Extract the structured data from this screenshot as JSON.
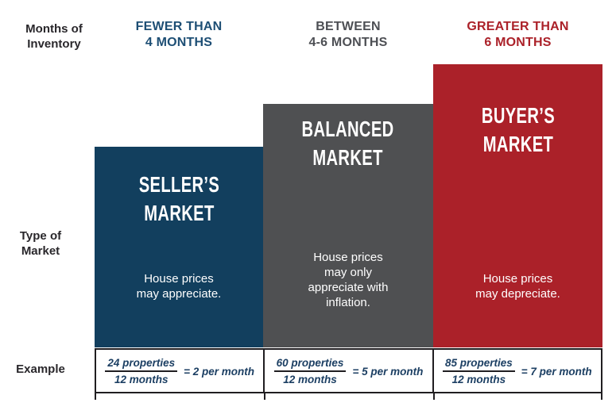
{
  "palette": {
    "seller_navy": "#123f5e",
    "balanced_gray": "#4f5052",
    "buyer_red": "#ab2129",
    "header_navy_text": "#1d4e74",
    "header_gray_text": "#4d4f54",
    "header_red_text": "#ab2129",
    "row_label_text": "#29272b",
    "example_text_navy": "#1c3f63",
    "border_dark": "#201e21",
    "bar_text_white": "#ffffff",
    "background": "#ffffff"
  },
  "row_labels": {
    "inventory": "Months of\nInventory",
    "type": "Type of\nMarket",
    "example": "Example"
  },
  "columns": [
    {
      "id": "seller",
      "header": "FEWER THAN\n4 MONTHS",
      "title": "SELLER’S\nMARKET",
      "body": "House prices\nmay appreciate.",
      "example": {
        "numerator": "24 properties",
        "denominator": "12 months",
        "result": "= 2 per month"
      }
    },
    {
      "id": "balanced",
      "header": "BETWEEN\n4-6 MONTHS",
      "title": "BALANCED\nMARKET",
      "body": "House prices\nmay only\nappreciate with\ninflation.",
      "example": {
        "numerator": "60 properties",
        "denominator": "12 months",
        "result": "= 5 per month"
      }
    },
    {
      "id": "buyer",
      "header": "GREATER THAN\n6 MONTHS",
      "title": "BUYER’S\nMARKET",
      "body": "House prices\nmay depreciate.",
      "example": {
        "numerator": "85 properties",
        "denominator": "12 months",
        "result": "= 7 per month"
      }
    }
  ]
}
